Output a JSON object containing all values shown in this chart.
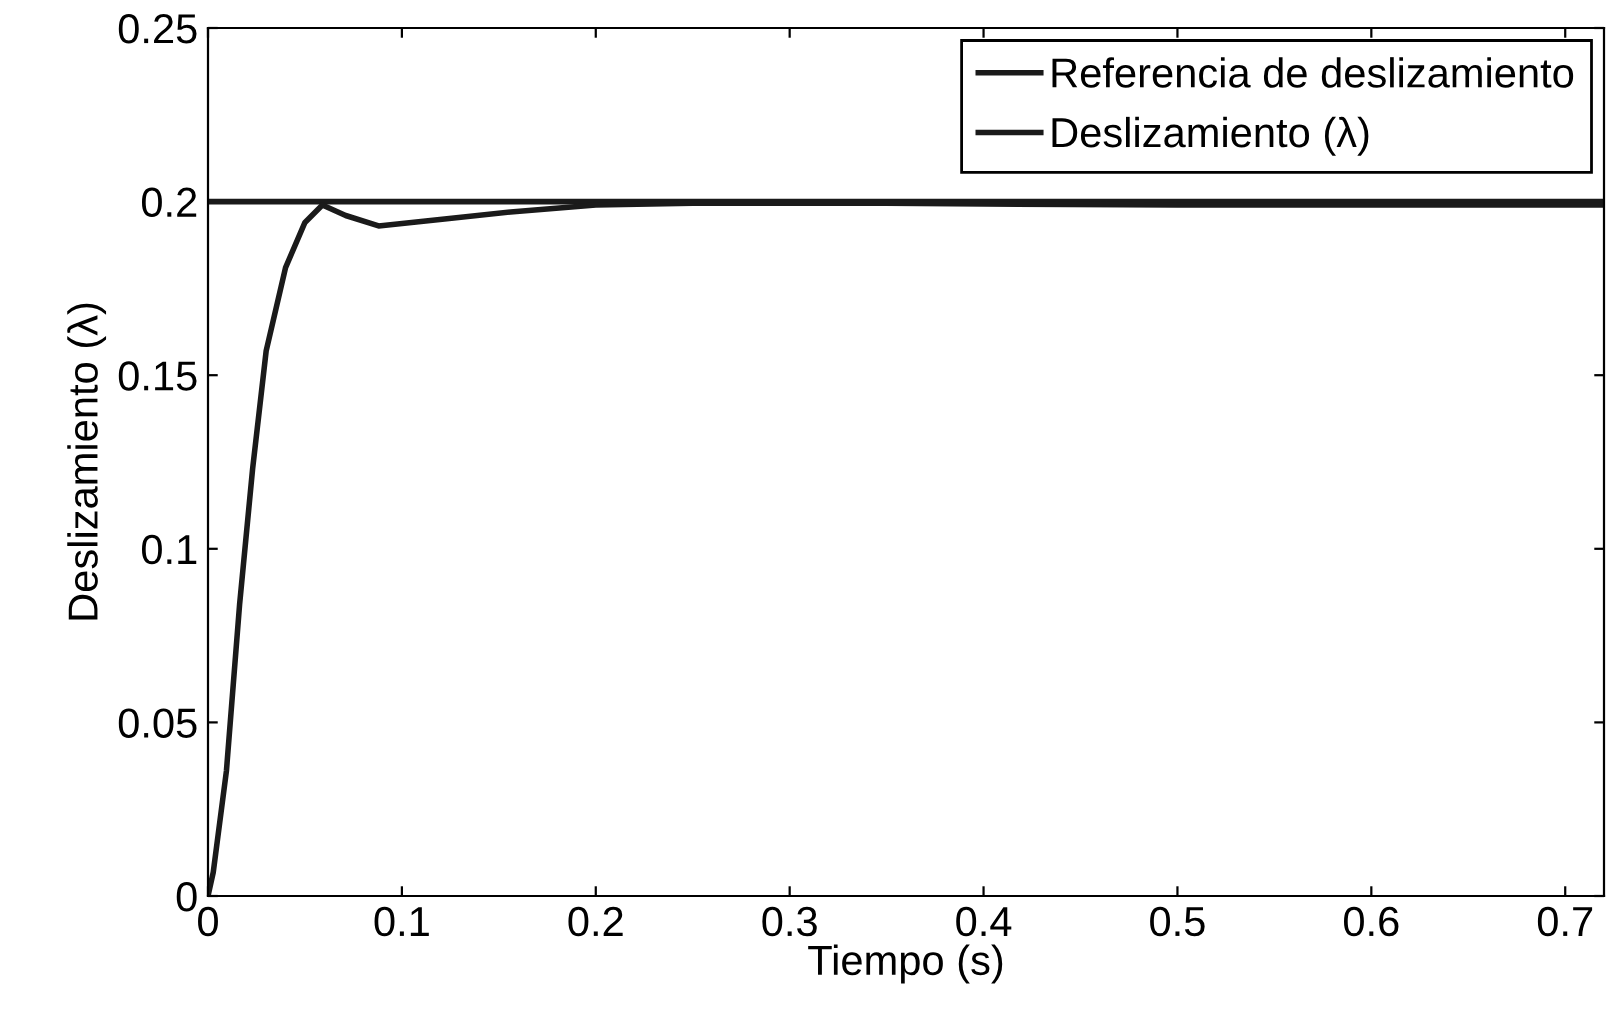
{
  "chart_data": {
    "type": "line",
    "xlabel": "Tiempo (s)",
    "ylabel": "Deslizamiento (λ)",
    "xlim": [
      0,
      0.72
    ],
    "ylim": [
      0,
      0.25
    ],
    "xticks": [
      0,
      0.1,
      0.2,
      0.3,
      0.4,
      0.5,
      0.6,
      0.7
    ],
    "yticks": [
      0,
      0.05,
      0.1,
      0.15,
      0.2,
      0.25
    ],
    "grid": false,
    "legend": "top right",
    "line_style": "solid",
    "marker": "none",
    "series": [
      {
        "name": "Referencia de deslizamiento",
        "color": "#1a1a1a",
        "x": [
          0,
          0.72
        ],
        "values": [
          0.2,
          0.2
        ]
      },
      {
        "name": "Deslizamiento (λ)",
        "color": "#1a1a1a",
        "x": [
          0,
          0.0027,
          0.0095,
          0.0163,
          0.023,
          0.03,
          0.04,
          0.05,
          0.059,
          0.071,
          0.088,
          0.122,
          0.156,
          0.2,
          0.25,
          0.35,
          0.5,
          0.72
        ],
        "values": [
          0,
          0.0068,
          0.036,
          0.084,
          0.123,
          0.157,
          0.181,
          0.194,
          0.199,
          0.196,
          0.193,
          0.195,
          0.197,
          0.199,
          0.1995,
          0.1995,
          0.199,
          0.199
        ]
      }
    ]
  }
}
